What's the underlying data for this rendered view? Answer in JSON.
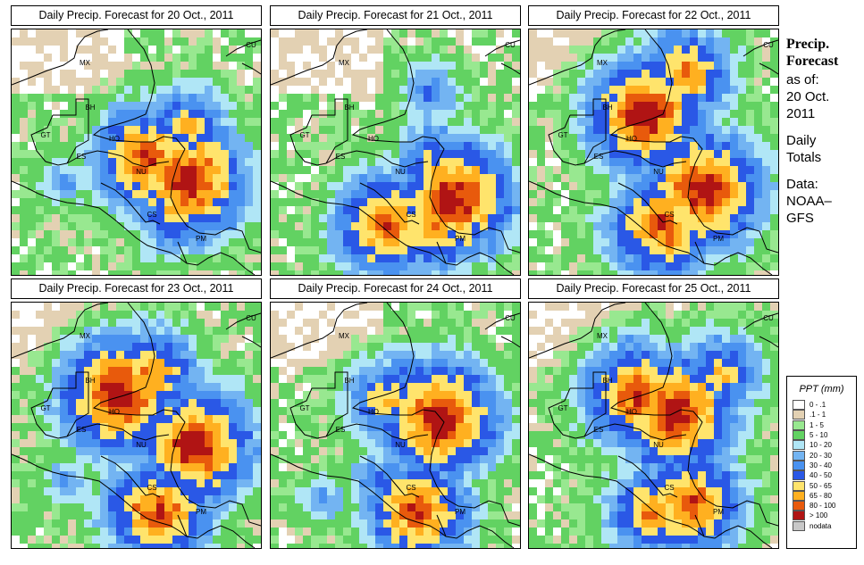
{
  "panels": [
    {
      "title": "Daily Precip. Forecast for  20 Oct., 2011",
      "seed": 11,
      "hotspots": [
        {
          "x": 198,
          "y": 170,
          "level": 12
        },
        {
          "x": 195,
          "y": 110,
          "level": 9
        },
        {
          "x": 150,
          "y": 145,
          "level": 11
        },
        {
          "x": 120,
          "y": 180,
          "level": 6
        },
        {
          "x": 60,
          "y": 170,
          "level": 6
        },
        {
          "x": 220,
          "y": 215,
          "level": 7
        },
        {
          "x": 175,
          "y": 225,
          "level": 7
        }
      ]
    },
    {
      "title": "Daily Precip. Forecast for  21 Oct., 2011",
      "seed": 23,
      "hotspots": [
        {
          "x": 205,
          "y": 190,
          "level": 12
        },
        {
          "x": 130,
          "y": 220,
          "level": 11
        },
        {
          "x": 185,
          "y": 220,
          "level": 10
        },
        {
          "x": 180,
          "y": 70,
          "level": 7
        },
        {
          "x": 180,
          "y": 140,
          "level": 8
        },
        {
          "x": 240,
          "y": 175,
          "level": 7
        },
        {
          "x": 110,
          "y": 170,
          "level": 6
        }
      ]
    },
    {
      "title": "Daily Precip. Forecast for  22 Oct., 2011",
      "seed": 37,
      "hotspots": [
        {
          "x": 130,
          "y": 95,
          "level": 12
        },
        {
          "x": 175,
          "y": 50,
          "level": 10
        },
        {
          "x": 195,
          "y": 180,
          "level": 12
        },
        {
          "x": 150,
          "y": 220,
          "level": 11
        },
        {
          "x": 125,
          "y": 225,
          "level": 9
        },
        {
          "x": 230,
          "y": 150,
          "level": 7
        },
        {
          "x": 90,
          "y": 110,
          "level": 7
        }
      ]
    },
    {
      "title": "Daily Precip. Forecast for  23 Oct., 2011",
      "seed": 41,
      "hotspots": [
        {
          "x": 205,
          "y": 160,
          "level": 12
        },
        {
          "x": 155,
          "y": 80,
          "level": 10
        },
        {
          "x": 120,
          "y": 105,
          "level": 12
        },
        {
          "x": 165,
          "y": 235,
          "level": 11
        },
        {
          "x": 140,
          "y": 230,
          "level": 9
        },
        {
          "x": 235,
          "y": 140,
          "level": 7
        },
        {
          "x": 60,
          "y": 200,
          "level": 6
        }
      ]
    },
    {
      "title": "Daily Precip. Forecast for  24 Oct., 2011",
      "seed": 53,
      "hotspots": [
        {
          "x": 190,
          "y": 130,
          "level": 12
        },
        {
          "x": 165,
          "y": 235,
          "level": 11
        },
        {
          "x": 130,
          "y": 110,
          "level": 9
        },
        {
          "x": 150,
          "y": 80,
          "level": 7
        },
        {
          "x": 120,
          "y": 200,
          "level": 7
        },
        {
          "x": 230,
          "y": 110,
          "level": 6
        },
        {
          "x": 60,
          "y": 220,
          "level": 6
        }
      ]
    },
    {
      "title": "Daily Precip. Forecast for  25 Oct., 2011",
      "seed": 67,
      "hotspots": [
        {
          "x": 120,
          "y": 105,
          "level": 11
        },
        {
          "x": 165,
          "y": 125,
          "level": 12
        },
        {
          "x": 140,
          "y": 235,
          "level": 10
        },
        {
          "x": 180,
          "y": 225,
          "level": 11
        },
        {
          "x": 215,
          "y": 80,
          "level": 9
        },
        {
          "x": 120,
          "y": 60,
          "level": 7
        },
        {
          "x": 80,
          "y": 140,
          "level": 6
        }
      ]
    }
  ],
  "countries": [
    {
      "code": "MX",
      "x": 82,
      "y": 40
    },
    {
      "code": "BH",
      "x": 88,
      "y": 90
    },
    {
      "code": "GT",
      "x": 38,
      "y": 121
    },
    {
      "code": "HO",
      "x": 115,
      "y": 125
    },
    {
      "code": "ES",
      "x": 78,
      "y": 145
    },
    {
      "code": "NU",
      "x": 145,
      "y": 162
    },
    {
      "code": "CS",
      "x": 157,
      "y": 210
    },
    {
      "code": "PM",
      "x": 212,
      "y": 237
    },
    {
      "code": "CU",
      "x": 268,
      "y": 20
    }
  ],
  "sidebar": {
    "title_line1": "Precip.",
    "title_line2": "Forecast",
    "asof_line1": "as of:",
    "asof_line2": "20 Oct.",
    "asof_line3": "2011",
    "daily_line1": "Daily",
    "daily_line2": "Totals",
    "data_line1": "Data:",
    "data_line2": "NOAA–",
    "data_line3": "GFS"
  },
  "legend": {
    "title": "PPT (mm)",
    "items": [
      {
        "label": "0 - .1",
        "color": "#ffffff"
      },
      {
        "label": ".1 - 1",
        "color": "#e3d1b3"
      },
      {
        "label": "1 - 5",
        "color": "#98e890"
      },
      {
        "label": "5 - 10",
        "color": "#62d262"
      },
      {
        "label": "10 - 20",
        "color": "#b0e6f6"
      },
      {
        "label": "20 - 30",
        "color": "#73b4f2"
      },
      {
        "label": "30 - 40",
        "color": "#4a92f0"
      },
      {
        "label": "40 - 50",
        "color": "#2a58e6"
      },
      {
        "label": "50 - 65",
        "color": "#ffe46c"
      },
      {
        "label": "65 - 80",
        "color": "#ffb020"
      },
      {
        "label": "80 - 100",
        "color": "#e85a0c"
      },
      {
        "label": "> 100",
        "color": "#b01414"
      },
      {
        "label": "nodata",
        "color": "#c8c8c8"
      }
    ]
  }
}
